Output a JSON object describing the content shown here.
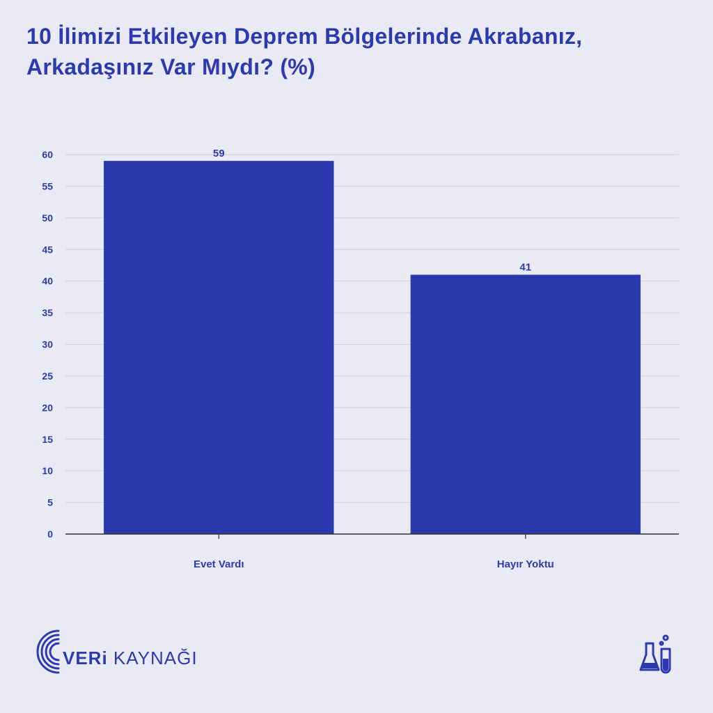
{
  "header": {
    "title_line1": "10 İlimizi Etkileyen Deprem Bölgelerinde Akrabanız,",
    "title_line2": "Arkadaşınız Var Mıydı? (%)"
  },
  "footer": {
    "brand_bold": "VERi",
    "brand_rest": " KAYNAĞI"
  },
  "colors": {
    "bar": "#2b3aae",
    "text": "#2b3aae",
    "background": "#e9eaf6",
    "grid": "#cfd0dc"
  },
  "chart_data": {
    "type": "bar",
    "title": "10 İlimizi Etkileyen Deprem Bölgelerinde Akrabanız, Arkadaşınız Var Mıydı? (%)",
    "categories": [
      "Evet Vardı",
      "Hayır Yoktu"
    ],
    "values": [
      59,
      41
    ],
    "data_labels": [
      "59",
      "41"
    ],
    "yticks": [
      "0",
      "5",
      "10",
      "15",
      "20",
      "25",
      "30",
      "35",
      "40",
      "45",
      "50",
      "55",
      "60"
    ],
    "ylim": [
      0,
      60
    ],
    "xlabel": "",
    "ylabel": "",
    "grid": true
  }
}
